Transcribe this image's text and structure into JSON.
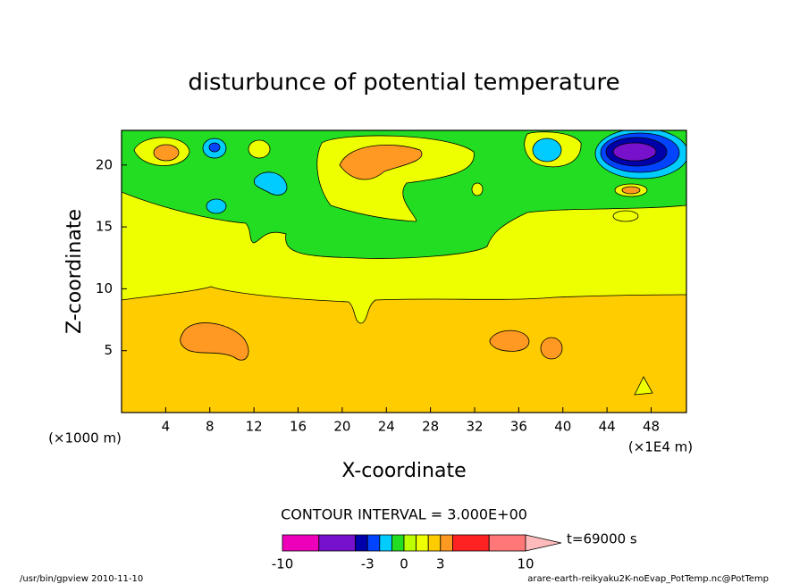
{
  "chart_data": {
    "type": "contour",
    "title": "disturbunce of potential temperature",
    "x_label": "X-coordinate",
    "y_label": "Z-coordinate",
    "x_unit_labels": [
      "(×1000 m)",
      "(×1E4 m)"
    ],
    "xlim": [
      0,
      51.2
    ],
    "xticks": [
      4,
      8,
      12,
      16,
      20,
      24,
      28,
      32,
      36,
      40,
      44,
      48
    ],
    "ylim": [
      0,
      22.8
    ],
    "yticks": [
      5,
      10,
      15,
      20
    ],
    "contour_interval_label": "CONTOUR INTERVAL = 3.000E+00",
    "colorbar": {
      "levels": [
        -10,
        -7,
        -4,
        -3,
        -2,
        -1,
        0,
        1,
        2,
        3,
        4,
        7,
        10
      ],
      "colors": [
        "#ee00bb",
        "#7711cc",
        "#0000aa",
        "#0044ff",
        "#00ccff",
        "#22dd22",
        "#bbff00",
        "#eeff00",
        "#ffcc00",
        "#ff9922",
        "#ff2222",
        "#ff7777"
      ],
      "over_color": "#ffbbbb",
      "lim": [
        -10,
        10
      ],
      "ticks": [
        -10,
        -3,
        0,
        3,
        10
      ]
    },
    "time_label": "t=69000 s"
  },
  "footer": {
    "left": "/usr/bin/gpview  2010-11-10",
    "right": "arare-earth-reikyaku2K-noEvap_PotTemp.nc@PotTemp"
  }
}
